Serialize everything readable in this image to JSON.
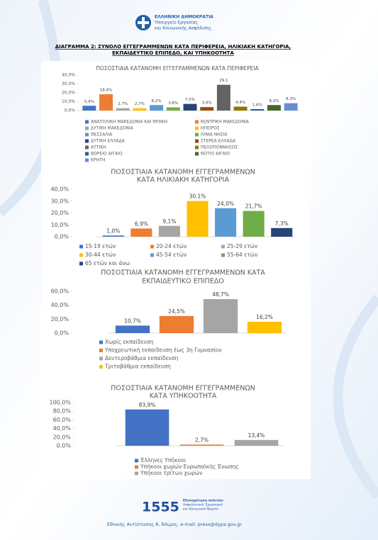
{
  "header": {
    "lines": [
      "ΕΛΛΗΝΙΚΗ ΔΗΜΟΚΡΑΤΙΑ",
      "Υπουργείο Εργασίας",
      "και Κοινωνικής Ασφάλισης"
    ]
  },
  "title": [
    "ΔΙΑΓΡΑΜΜΑ 2: ΣΥΝΟΛΟ ΕΓΓΕΓΡΑΜΜΕΝΩΝ ΚΑΤΑ ΠΕΡΙΦΕΡΕΙΑ, ΗΛΙΚΙΑΚΗ ΚΑΤΗΓΟΡΙΑ,",
    "ΕΚΠΑΙΔΕΥΤΙΚΟ ΕΠΙΠΕΔΟ, ΚΑΙ ΥΠΗΚΟΟΤΗΤΑ"
  ],
  "chart_data": [
    {
      "type": "bar",
      "title": [
        "ΠΟΣΟΣΤΙΑΙΑ ΚΑΤΑΝΟΜΗ ΕΓΓΕΓΡΑΜΜΕΝΩΝ ΚΑΤΑ ΠΕΡΙΦΕΡΕΙΑ"
      ],
      "categories": [
        "ΑΝΑΤΟΛΙΚΗ ΜΑΚΕΔΟΝΙΑ ΚΑΙ ΘΡΑΚΗ",
        "ΚΕΝΤΡΙΚΗ ΜΑΚΕΔΟΝΙΑ",
        "ΔΥΤΙΚΗ ΜΑΚΕΔΟΝΙΑ",
        "ΗΠΕΙΡΟΣ",
        "ΘΕΣΣΑΛΙΑ",
        "ΙΟΝΙΑ ΝΗΣΙΑ",
        "ΔΥΤΙΚΗ ΕΛΛΑΔΑ",
        "ΣΤΕΡΕΑ ΕΛΛΑΔΑ",
        "ΑΤΤΙΚΗ",
        "ΠΕΛΟΠΟΝΝΗΣΟΣ",
        "ΒΟΡΕΙΟ ΑΙΓΑΙΟ",
        "ΝΟΤΙΟ ΑΙΓΑΙΟ",
        "ΚΡΗΤΗ"
      ],
      "values": [
        5.4,
        18.4,
        2.7,
        2.7,
        6.2,
        3.6,
        7.5,
        3.9,
        29.1,
        4.4,
        1.6,
        6.2,
        8.3
      ],
      "value_labels": [
        "5,4%",
        "18,4%",
        "2,7%",
        "2,7%",
        "6,2%",
        "3,6%",
        "7,5%",
        "3,9%",
        "29,1",
        "4,4%",
        "1,6%",
        "6,2%",
        "8,3%"
      ],
      "colors": [
        "#4472c4",
        "#ed7d31",
        "#a5a5a5",
        "#ffc000",
        "#5b9bd5",
        "#70ad47",
        "#264478",
        "#9e480e",
        "#636363",
        "#997300",
        "#255e91",
        "#43682b",
        "#698ed0"
      ],
      "ylim": [
        0,
        40
      ],
      "yticks": [
        {
          "value": 0,
          "label": "0,0%"
        },
        {
          "value": 10,
          "label": "10,0%"
        },
        {
          "value": 20,
          "label": "20,0%"
        },
        {
          "value": 30,
          "label": "30,0%"
        },
        {
          "value": 40,
          "label": "40,0%"
        }
      ]
    },
    {
      "type": "bar",
      "title": [
        "ΠΟΣΟΣΤΙΑΙΑ ΚΑΤΑΝΟΜΗ ΕΓΓΕΓΡΑΜΜΕΝΩΝ",
        "ΚΑΤΑ ΗΛΙΚΙΑΚΗ ΚΑΤΗΓΟΡΙΑ"
      ],
      "categories": [
        "15-19 ετών",
        "20-24 ετών",
        "25-29 ετών",
        "30-44 ετών",
        "45-54 ετών",
        "55-64 ετών",
        "65 ετών και άνω"
      ],
      "values": [
        1.0,
        6.9,
        9.1,
        30.1,
        24.0,
        21.7,
        7.3
      ],
      "value_labels": [
        "1,0%",
        "6,9%",
        "9,1%",
        "30,1%",
        "24,0%",
        "21,7%",
        "7,3%"
      ],
      "colors": [
        "#4472c4",
        "#ed7d31",
        "#a5a5a5",
        "#ffc000",
        "#5b9bd5",
        "#70ad47",
        "#264478"
      ],
      "ylim": [
        0,
        40
      ],
      "yticks": [
        {
          "value": 0,
          "label": "0,0%"
        },
        {
          "value": 10,
          "label": "10,0%"
        },
        {
          "value": 20,
          "label": "20,0%"
        },
        {
          "value": 30,
          "label": "30,0%"
        },
        {
          "value": 40,
          "label": "40,0%"
        }
      ]
    },
    {
      "type": "bar",
      "title": [
        "ΠΟΣΟΣΤΙΑΙΑ ΚΑΤΑΝΟΜΗ ΕΓΓΕΓΡΑΜΜΕΝΩΝ ΚΑΤΑ",
        "ΕΚΠΑΙΔΕΥΤΙΚΟ ΕΠΙΠΕΔΟ"
      ],
      "categories": [
        "Χωρίς εκπαίδευση",
        "Υποχρεωτική εκπαίδευση έως 3η Γυμνασίου",
        "Δευτεροβάθμια εκπαίδευση",
        "Τριτοβάθμια εκπαίδευση"
      ],
      "values": [
        10.7,
        24.5,
        48.7,
        16.2
      ],
      "value_labels": [
        "10,7%",
        "24,5%",
        "48,7%",
        "16,2%"
      ],
      "colors": [
        "#4472c4",
        "#ed7d31",
        "#a5a5a5",
        "#ffc000"
      ],
      "ylim": [
        0,
        60
      ],
      "yticks": [
        {
          "value": 0,
          "label": "0,0%"
        },
        {
          "value": 20,
          "label": "20,0%"
        },
        {
          "value": 40,
          "label": "40,0%"
        },
        {
          "value": 60,
          "label": "60,0%"
        }
      ]
    },
    {
      "type": "bar",
      "title": [
        "ΠΟΣΟΣΤΙΑΙΑ ΚΑΤΑΝΟΜΗ  ΕΓΓΕΓΡΑΜΜΕΝΩΝ",
        "ΚΑΤΑ ΥΠΗΚΟΟΤΗΤΑ"
      ],
      "categories": [
        "Έλληνες Υπήκοοι",
        "Υπήκοοι χωρών Ευρωπαϊκής Ένωσης",
        "Υπήκοοι τρίτων χωρών"
      ],
      "values": [
        83.9,
        2.7,
        13.4
      ],
      "value_labels": [
        "83,9%",
        "2,7%",
        "13,4%"
      ],
      "colors": [
        "#4472c4",
        "#ed7d31",
        "#a5a5a5"
      ],
      "ylim": [
        0,
        100
      ],
      "yticks": [
        {
          "value": 0,
          "label": "0,0%"
        },
        {
          "value": 20,
          "label": "20,0%"
        },
        {
          "value": 40,
          "label": "40,0%"
        },
        {
          "value": 60,
          "label": "60,0%"
        },
        {
          "value": 80,
          "label": "80,0%"
        },
        {
          "value": 100,
          "label": "100,0%"
        }
      ]
    }
  ],
  "footer": {
    "logo": "1555",
    "lines": [
      "Εξυπηρέτηση πολιτών",
      "Ασφαλιστικά, Εργασιακά",
      "και Κοινωνικά θέματα"
    ],
    "address": "Εθνικής Αντίστασης 8, Άλιμος, e-mail: press@dypa.gov.gr"
  }
}
